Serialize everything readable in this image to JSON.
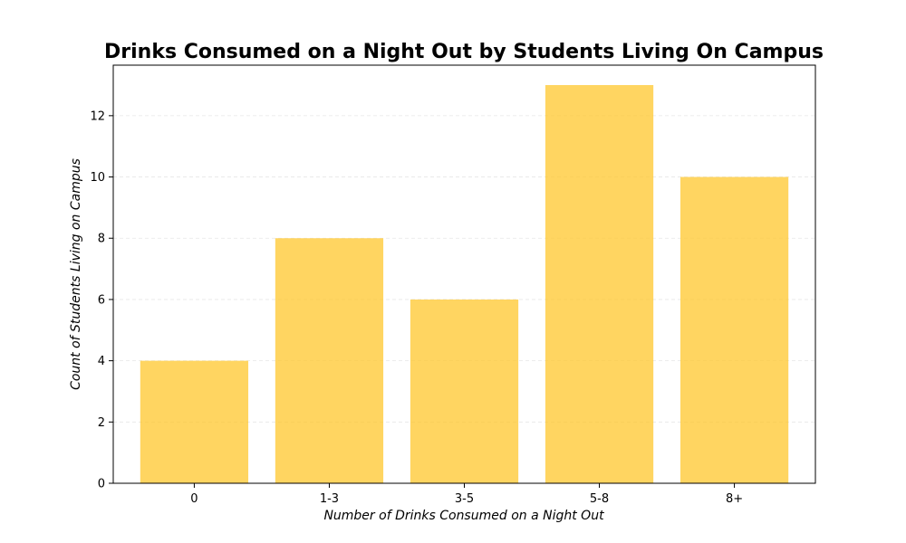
{
  "chart_data": {
    "type": "bar",
    "title": "Drinks Consumed on a Night Out by Students Living On Campus",
    "xlabel": "Number of Drinks Consumed on a Night Out",
    "ylabel": "Count of Students Living on Campus",
    "categories": [
      "0",
      "1-3",
      "3-5",
      "5-8",
      "8+"
    ],
    "values": [
      4,
      8,
      6,
      13,
      10
    ],
    "ylim": [
      0,
      13.65
    ],
    "yticks": [
      0,
      2,
      4,
      6,
      8,
      10,
      12
    ],
    "grid": "y-dashed",
    "bar_color": "#ffc72c",
    "bar_opacity": 0.75
  }
}
